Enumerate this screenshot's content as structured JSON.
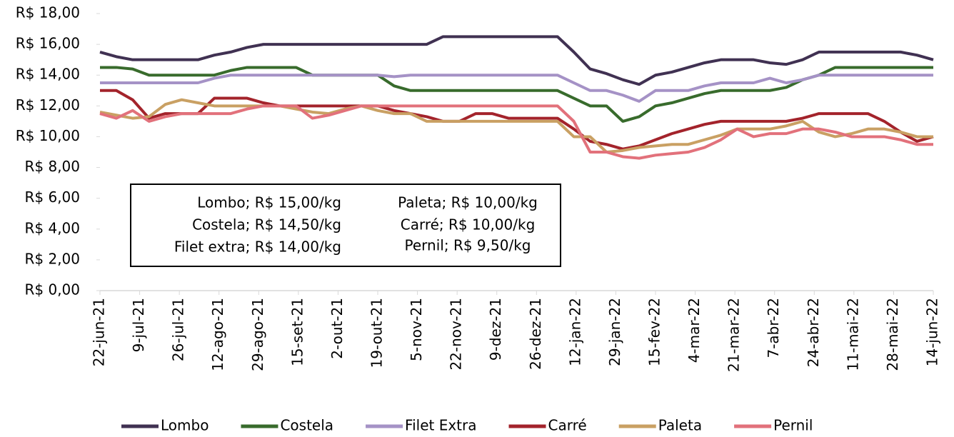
{
  "chart_data": {
    "type": "line",
    "annotations": [
      "Lombo; R$ 15,00/kg",
      "Costela; R$ 14,50/kg",
      "Filet extra; R$ 14,00/kg",
      "Paleta; R$ 10,00/kg",
      "Carré; R$ 10,00/kg",
      "Pernil; R$ 9,50/kg"
    ],
    "x": [
      "2021-06-22",
      "2021-06-29",
      "2021-07-06",
      "2021-07-13",
      "2021-07-20",
      "2021-07-27",
      "2021-08-03",
      "2021-08-10",
      "2021-08-17",
      "2021-08-24",
      "2021-08-31",
      "2021-09-07",
      "2021-09-14",
      "2021-09-21",
      "2021-09-28",
      "2021-10-05",
      "2021-10-12",
      "2021-10-19",
      "2021-10-26",
      "2021-11-02",
      "2021-11-09",
      "2021-11-16",
      "2021-11-23",
      "2021-11-30",
      "2021-12-07",
      "2021-12-14",
      "2021-12-21",
      "2021-12-28",
      "2022-01-04",
      "2022-01-11",
      "2022-01-18",
      "2022-01-25",
      "2022-02-01",
      "2022-02-08",
      "2022-02-15",
      "2022-02-22",
      "2022-03-01",
      "2022-03-08",
      "2022-03-15",
      "2022-03-22",
      "2022-03-29",
      "2022-04-05",
      "2022-04-12",
      "2022-04-19",
      "2022-04-26",
      "2022-05-03",
      "2022-05-10",
      "2022-05-17",
      "2022-05-24",
      "2022-05-31",
      "2022-06-07",
      "2022-06-14"
    ],
    "xlim": [
      "2021-06-22",
      "2022-06-14"
    ],
    "xticks": [
      {
        "value": "2021-06-22",
        "label": "22-jun-21"
      },
      {
        "value": "2021-07-09",
        "label": "9-jul-21"
      },
      {
        "value": "2021-07-26",
        "label": "26-jul-21"
      },
      {
        "value": "2021-08-12",
        "label": "12-ago-21"
      },
      {
        "value": "2021-08-29",
        "label": "29-ago-21"
      },
      {
        "value": "2021-09-15",
        "label": "15-set-21"
      },
      {
        "value": "2021-10-02",
        "label": "2-out-21"
      },
      {
        "value": "2021-10-19",
        "label": "19-out-21"
      },
      {
        "value": "2021-11-05",
        "label": "5-nov-21"
      },
      {
        "value": "2021-11-22",
        "label": "22-nov-21"
      },
      {
        "value": "2021-12-09",
        "label": "9-dez-21"
      },
      {
        "value": "2021-12-26",
        "label": "26-dez-21"
      },
      {
        "value": "2022-01-12",
        "label": "12-jan-22"
      },
      {
        "value": "2022-01-29",
        "label": "29-jan-22"
      },
      {
        "value": "2022-02-15",
        "label": "15-fev-22"
      },
      {
        "value": "2022-03-04",
        "label": "4-mar-22"
      },
      {
        "value": "2022-03-21",
        "label": "21-mar-22"
      },
      {
        "value": "2022-04-07",
        "label": "7-abr-22"
      },
      {
        "value": "2022-04-24",
        "label": "24-abr-22"
      },
      {
        "value": "2022-05-11",
        "label": "11-mai-22"
      },
      {
        "value": "2022-05-28",
        "label": "28-mai-22"
      },
      {
        "value": "2022-06-14",
        "label": "14-jun-22"
      }
    ],
    "ylim": [
      0,
      18
    ],
    "yticks": [
      {
        "value": 0,
        "label": "R$ 0,00"
      },
      {
        "value": 2,
        "label": "R$ 2,00"
      },
      {
        "value": 4,
        "label": "R$ 4,00"
      },
      {
        "value": 6,
        "label": "R$ 6,00"
      },
      {
        "value": 8,
        "label": "R$ 8,00"
      },
      {
        "value": 10,
        "label": "R$ 10,00"
      },
      {
        "value": 12,
        "label": "R$ 12,00"
      },
      {
        "value": 14,
        "label": "R$ 14,00"
      },
      {
        "value": 16,
        "label": "R$ 16,00"
      },
      {
        "value": 18,
        "label": "R$ 18,00"
      }
    ],
    "legend": "bottom",
    "series": [
      {
        "name": "Lombo",
        "color": "#403152",
        "values": [
          15.5,
          15.2,
          15,
          15,
          15,
          15,
          15,
          15.3,
          15.5,
          15.8,
          16,
          16,
          16,
          16,
          16,
          16,
          16,
          16,
          16,
          16,
          16,
          16.5,
          16.5,
          16.5,
          16.5,
          16.5,
          16.5,
          16.5,
          16.5,
          15.5,
          14.4,
          14.1,
          13.7,
          13.4,
          14,
          14.2,
          14.5,
          14.8,
          15,
          15,
          15,
          14.8,
          14.7,
          15,
          15.5,
          15.5,
          15.5,
          15.5,
          15.5,
          15.5,
          15.3,
          15
        ]
      },
      {
        "name": "Costela",
        "color": "#386b2c",
        "values": [
          14.5,
          14.5,
          14.4,
          14,
          14,
          14,
          14,
          14,
          14.3,
          14.5,
          14.5,
          14.5,
          14.5,
          14,
          14,
          14,
          14,
          14,
          13.3,
          13,
          13,
          13,
          13,
          13,
          13,
          13,
          13,
          13,
          13,
          12.5,
          12,
          12,
          11,
          11.3,
          12,
          12.2,
          12.5,
          12.8,
          13,
          13,
          13,
          13,
          13.2,
          13.7,
          14,
          14.5,
          14.5,
          14.5,
          14.5,
          14.5,
          14.5,
          14.5
        ]
      },
      {
        "name": "Filet Extra",
        "color": "#a592c6",
        "values": [
          13.5,
          13.5,
          13.5,
          13.5,
          13.5,
          13.5,
          13.5,
          13.8,
          14,
          14,
          14,
          14,
          14,
          14,
          14,
          14,
          14,
          14,
          13.9,
          14,
          14,
          14,
          14,
          14,
          14,
          14,
          14,
          14,
          14,
          13.5,
          13,
          13,
          12.7,
          12.3,
          13,
          13,
          13,
          13.3,
          13.5,
          13.5,
          13.5,
          13.8,
          13.5,
          13.7,
          14,
          14,
          14,
          14,
          14,
          14,
          14,
          14
        ]
      },
      {
        "name": "Carré",
        "color": "#a3232b",
        "values": [
          13,
          13,
          12.4,
          11.2,
          11.5,
          11.5,
          11.5,
          12.5,
          12.5,
          12.5,
          12.2,
          12,
          12,
          12,
          12,
          12,
          12,
          12,
          11.7,
          11.5,
          11.3,
          11,
          11,
          11.5,
          11.5,
          11.2,
          11.2,
          11.2,
          11.2,
          10.5,
          9.7,
          9.5,
          9.2,
          9.4,
          9.8,
          10.2,
          10.5,
          10.8,
          11,
          11,
          11,
          11,
          11,
          11.2,
          11.5,
          11.5,
          11.5,
          11.5,
          11,
          10.3,
          9.7,
          10
        ]
      },
      {
        "name": "Paleta",
        "color": "#c9a063",
        "values": [
          11.6,
          11.4,
          11.2,
          11.3,
          12.1,
          12.4,
          12.2,
          12,
          12,
          12,
          12,
          12,
          11.8,
          11.6,
          11.5,
          11.8,
          12,
          11.7,
          11.5,
          11.5,
          11,
          11,
          11,
          11,
          11,
          11,
          11,
          11,
          11,
          10,
          10,
          9,
          9.1,
          9.3,
          9.4,
          9.5,
          9.5,
          9.8,
          10.1,
          10.5,
          10.5,
          10.5,
          10.7,
          11,
          10.3,
          10,
          10.2,
          10.5,
          10.5,
          10.3,
          10,
          10
        ]
      },
      {
        "name": "Pernil",
        "color": "#e2717b",
        "values": [
          11.5,
          11.2,
          11.7,
          11,
          11.3,
          11.5,
          11.5,
          11.5,
          11.5,
          11.8,
          12,
          12,
          12,
          11.2,
          11.4,
          11.7,
          12,
          12,
          12,
          12,
          12,
          12,
          12,
          12,
          12,
          12,
          12,
          12,
          12,
          11,
          9,
          9,
          8.7,
          8.6,
          8.8,
          8.9,
          9,
          9.3,
          9.8,
          10.5,
          10,
          10.2,
          10.2,
          10.5,
          10.5,
          10.3,
          10,
          10,
          10,
          9.8,
          9.5,
          9.5
        ]
      }
    ]
  }
}
